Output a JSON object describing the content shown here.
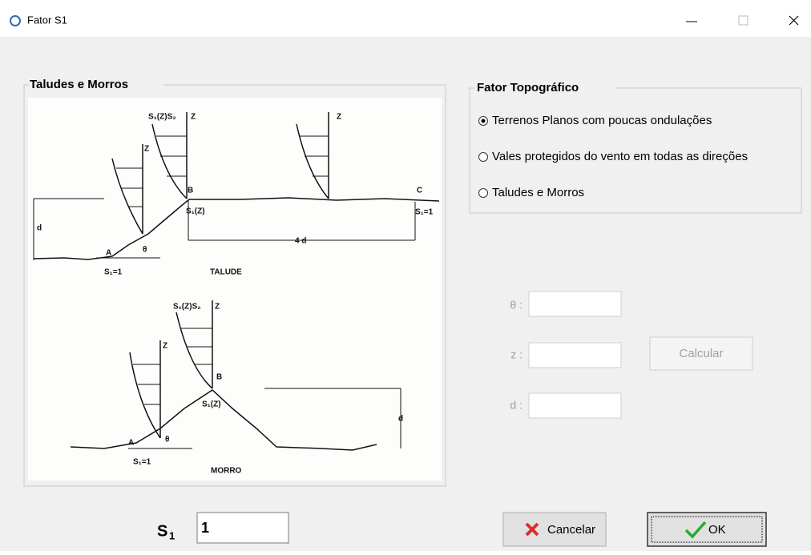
{
  "window": {
    "title": "Fator S1"
  },
  "taludes_group": {
    "title": "Taludes e Morros",
    "talude_labels": [
      "S₁(Z)S₂",
      "Z",
      "Z",
      "Z",
      "B",
      "C",
      "A",
      "θ",
      "d",
      "4 d",
      "S₁(Z)",
      "S₁=1",
      "S₁=1",
      "TALUDE"
    ],
    "morro_labels": [
      "S₁(Z)S₂",
      "Z",
      "Z",
      "B",
      "S₁(Z)",
      "A",
      "θ",
      "d",
      "S₁=1",
      "MORRO"
    ]
  },
  "topographic_group": {
    "title": "Fator Topográfico",
    "options": [
      {
        "label": "Terrenos Planos com poucas ondulações",
        "selected": true
      },
      {
        "label": "Vales protegidos do vento em todas as direções",
        "selected": false
      },
      {
        "label": "Taludes e Morros",
        "selected": false
      }
    ]
  },
  "inputs": {
    "theta": "θ :",
    "z": "z :",
    "d": "d :"
  },
  "calculate_button": "Calcular",
  "s1": {
    "label": "S",
    "subscript": "1",
    "value": "1"
  },
  "cancel_button": "Cancelar",
  "ok_button": "OK"
}
